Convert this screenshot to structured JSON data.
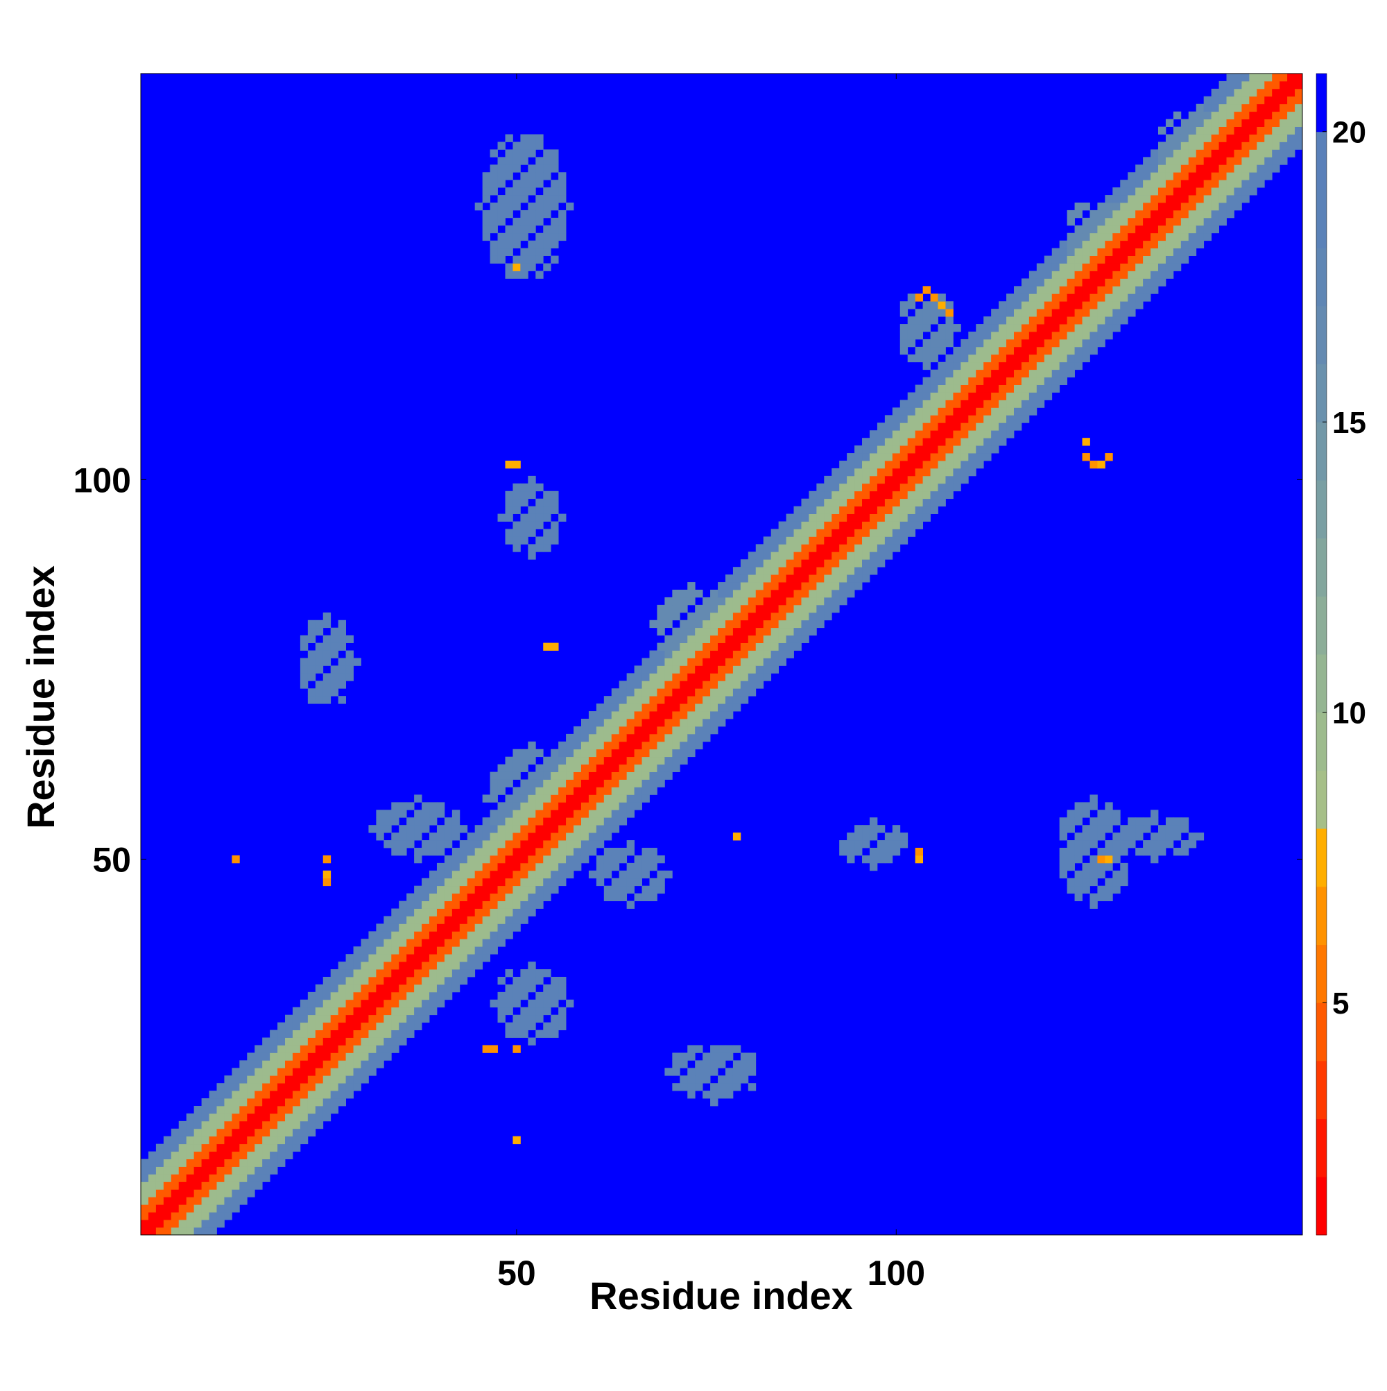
{
  "chart_data": {
    "type": "heatmap",
    "title": "",
    "xlabel": "Residue index",
    "ylabel": "Residue index",
    "xlim": [
      1,
      153
    ],
    "ylim": [
      1,
      153
    ],
    "x_ticks": [
      50,
      100
    ],
    "y_ticks": [
      50,
      100
    ],
    "x_tick_labels": [
      "50",
      "100"
    ],
    "y_tick_labels": [
      "50",
      "100"
    ],
    "colorbar": {
      "range": [
        1,
        21
      ],
      "ticks": [
        5,
        10,
        15,
        20
      ],
      "tick_labels": [
        "5",
        "10",
        "15",
        "20"
      ],
      "bands": [
        {
          "from": 1,
          "to": 2,
          "color": "#ff0000"
        },
        {
          "from": 2,
          "to": 3,
          "color": "#ff1800"
        },
        {
          "from": 3,
          "to": 4,
          "color": "#ff3a00"
        },
        {
          "from": 4,
          "to": 5,
          "color": "#ff5a00"
        },
        {
          "from": 5,
          "to": 6,
          "color": "#ff7800"
        },
        {
          "from": 6,
          "to": 7,
          "color": "#ff9200"
        },
        {
          "from": 7,
          "to": 8,
          "color": "#ffae00"
        },
        {
          "from": 8,
          "to": 9,
          "color": "#a6bf88"
        },
        {
          "from": 9,
          "to": 10,
          "color": "#9dbb8d"
        },
        {
          "from": 10,
          "to": 11,
          "color": "#95b592"
        },
        {
          "from": 11,
          "to": 12,
          "color": "#8cad98"
        },
        {
          "from": 12,
          "to": 13,
          "color": "#83a69d"
        },
        {
          "from": 13,
          "to": 14,
          "color": "#7a9fa3"
        },
        {
          "from": 14,
          "to": 15,
          "color": "#7298a8"
        },
        {
          "from": 15,
          "to": 16,
          "color": "#6a91ad"
        },
        {
          "from": 16,
          "to": 17,
          "color": "#648ab1"
        },
        {
          "from": 17,
          "to": 18,
          "color": "#5f86b4"
        },
        {
          "from": 18,
          "to": 19,
          "color": "#5b82b8"
        },
        {
          "from": 19,
          "to": 20,
          "color": "#5a80b9"
        },
        {
          "from": 20,
          "to": 21,
          "color": "#0000ff"
        }
      ]
    },
    "background_value": 21,
    "diagonal": {
      "core_value": 1,
      "inner_value": 4,
      "shell_value": 9,
      "halo_value": 18
    },
    "contact_blobs": [
      {
        "x": 25,
        "y": 76,
        "rx": 4,
        "ry": 6,
        "value": 18
      },
      {
        "x": 51,
        "y": 136,
        "rx": 6,
        "ry": 10,
        "value": 18
      },
      {
        "x": 52,
        "y": 95,
        "rx": 4,
        "ry": 5,
        "value": 18
      },
      {
        "x": 52,
        "y": 31,
        "rx": 5,
        "ry": 5,
        "value": 18
      },
      {
        "x": 52,
        "y": 58,
        "rx": 6,
        "ry": 7,
        "value": 17
      },
      {
        "x": 37,
        "y": 54,
        "rx": 6,
        "ry": 4,
        "value": 18
      },
      {
        "x": 65,
        "y": 48,
        "rx": 5,
        "ry": 4,
        "value": 18
      },
      {
        "x": 76,
        "y": 22,
        "rx": 6,
        "ry": 4,
        "value": 18
      },
      {
        "x": 73,
        "y": 81,
        "rx": 5,
        "ry": 5,
        "value": 16
      },
      {
        "x": 104,
        "y": 120,
        "rx": 4,
        "ry": 5,
        "value": 17
      },
      {
        "x": 126,
        "y": 51,
        "rx": 5,
        "ry": 7,
        "value": 18
      },
      {
        "x": 134,
        "y": 53,
        "rx": 6,
        "ry": 3,
        "value": 18
      },
      {
        "x": 97,
        "y": 52,
        "rx": 5,
        "ry": 3,
        "value": 18
      },
      {
        "x": 127,
        "y": 132,
        "rx": 5,
        "ry": 5,
        "value": 16
      },
      {
        "x": 140,
        "y": 144,
        "rx": 6,
        "ry": 5,
        "value": 16
      }
    ],
    "contact_points": [
      {
        "x": 103,
        "y": 124,
        "value": 6
      },
      {
        "x": 104,
        "y": 125,
        "value": 6
      },
      {
        "x": 105,
        "y": 124,
        "value": 6
      },
      {
        "x": 106,
        "y": 123,
        "value": 7
      },
      {
        "x": 107,
        "y": 122,
        "value": 6
      },
      {
        "x": 125,
        "y": 103,
        "value": 6
      },
      {
        "x": 126,
        "y": 102,
        "value": 6
      },
      {
        "x": 127,
        "y": 102,
        "value": 7
      },
      {
        "x": 128,
        "y": 103,
        "value": 6
      },
      {
        "x": 125,
        "y": 105,
        "value": 7
      },
      {
        "x": 49,
        "y": 102,
        "value": 7
      },
      {
        "x": 50,
        "y": 102,
        "value": 7
      },
      {
        "x": 54,
        "y": 78,
        "value": 7
      },
      {
        "x": 55,
        "y": 78,
        "value": 7
      },
      {
        "x": 46,
        "y": 25,
        "value": 6
      },
      {
        "x": 47,
        "y": 25,
        "value": 6
      },
      {
        "x": 50,
        "y": 25,
        "value": 6
      },
      {
        "x": 50,
        "y": 13,
        "value": 7
      },
      {
        "x": 13,
        "y": 50,
        "value": 6
      },
      {
        "x": 25,
        "y": 50,
        "value": 6
      },
      {
        "x": 25,
        "y": 48,
        "value": 7
      },
      {
        "x": 25,
        "y": 47,
        "value": 6
      },
      {
        "x": 79,
        "y": 53,
        "value": 7
      },
      {
        "x": 103,
        "y": 51,
        "value": 6
      },
      {
        "x": 103,
        "y": 50,
        "value": 7
      },
      {
        "x": 127,
        "y": 50,
        "value": 6
      },
      {
        "x": 128,
        "y": 50,
        "value": 7
      },
      {
        "x": 50,
        "y": 128,
        "value": 7
      }
    ]
  }
}
